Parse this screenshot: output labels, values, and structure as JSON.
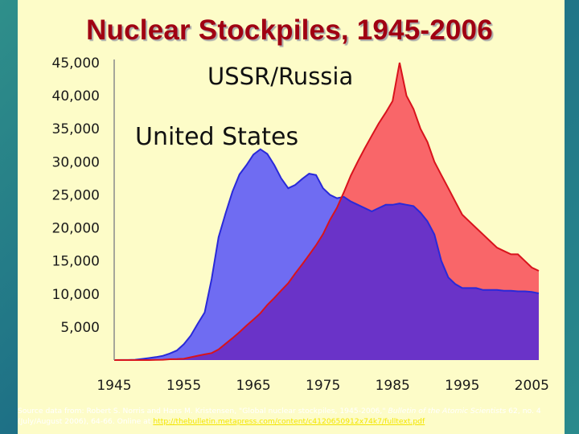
{
  "slide": {
    "title": "Nuclear Stockpiles, 1945-2006",
    "source": {
      "text": "Source data from: Robert S. Norris and Hans M. Kristensen, \"Global nuclear stockpiles, 1945-2006,\" ",
      "journal": "Bulletin of the Atomic Scientists",
      "text2": " 62, no. 4 (July/August 2006), 64-66. Online at ",
      "link": "http://thebulletin.metapress.com/content/c4120650912x74k7/fulltext.pdf"
    }
  },
  "colors": {
    "us_fill": "#6f6cf2",
    "us_line": "#2929d9",
    "ussr_fill": "#f96669",
    "ussr_line": "#d8131c",
    "overlap_fill": "#6a33c8",
    "background": "#fdfcc8",
    "title": "#a00012"
  },
  "chart_data": {
    "type": "area",
    "title": "Nuclear Stockpiles, 1945-2006",
    "x": [
      1945,
      1946,
      1947,
      1948,
      1949,
      1950,
      1951,
      1952,
      1953,
      1954,
      1955,
      1956,
      1957,
      1958,
      1959,
      1960,
      1961,
      1962,
      1963,
      1964,
      1965,
      1966,
      1967,
      1968,
      1969,
      1970,
      1971,
      1972,
      1973,
      1974,
      1975,
      1976,
      1977,
      1978,
      1979,
      1980,
      1981,
      1982,
      1983,
      1984,
      1985,
      1986,
      1987,
      1988,
      1989,
      1990,
      1991,
      1992,
      1993,
      1994,
      1995,
      1996,
      1997,
      1998,
      1999,
      2000,
      2001,
      2002,
      2003,
      2004,
      2005,
      2006
    ],
    "series": [
      {
        "name": "United States",
        "values": [
          2,
          9,
          13,
          50,
          170,
          300,
          450,
          650,
          1000,
          1450,
          2400,
          3700,
          5500,
          7200,
          12300,
          18600,
          22200,
          25500,
          28100,
          29500,
          31100,
          31900,
          31200,
          29500,
          27500,
          26000,
          26500,
          27400,
          28200,
          28000,
          26000,
          25000,
          24500,
          24700,
          24000,
          23500,
          23000,
          22500,
          23000,
          23500,
          23500,
          23700,
          23500,
          23300,
          22300,
          21000,
          19000,
          15000,
          12500,
          11500,
          10900,
          10900,
          10900,
          10600,
          10600,
          10600,
          10500,
          10500,
          10400,
          10400,
          10300,
          10100
        ]
      },
      {
        "name": "USSR/Russia",
        "values": [
          0,
          0,
          0,
          0,
          1,
          5,
          25,
          50,
          120,
          150,
          200,
          426,
          660,
          869,
          1060,
          1605,
          2471,
          3322,
          4238,
          5221,
          6129,
          7089,
          8339,
          9399,
          10538,
          11643,
          13092,
          14478,
          15915,
          17385,
          19055,
          21205,
          23044,
          25393,
          27935,
          30062,
          32049,
          33952,
          35804,
          37431,
          39197,
          45000,
          40000,
          38000,
          35000,
          33000,
          30000,
          28000,
          26000,
          24000,
          22000,
          21000,
          20000,
          19000,
          18000,
          17000,
          16500,
          16000,
          16000,
          15000,
          14000,
          13500
        ]
      }
    ],
    "ylim": [
      0,
      45000
    ],
    "yticks": [
      "45,000",
      "40,000",
      "35,000",
      "30,000",
      "25,000",
      "20,000",
      "15,000",
      "10,000",
      "5,000"
    ],
    "ytick_values": [
      45000,
      40000,
      35000,
      30000,
      25000,
      20000,
      15000,
      10000,
      5000
    ],
    "xticks": [
      "1945",
      "1955",
      "1965",
      "1975",
      "1985",
      "1995",
      "2005"
    ],
    "xtick_values": [
      1945,
      1955,
      1965,
      1975,
      1985,
      1995,
      2005
    ],
    "series_labels": [
      {
        "text": "USSR/Russia",
        "series": "USSR/Russia"
      },
      {
        "text": "United States",
        "series": "United States"
      }
    ],
    "grid": false,
    "legend": "none"
  }
}
